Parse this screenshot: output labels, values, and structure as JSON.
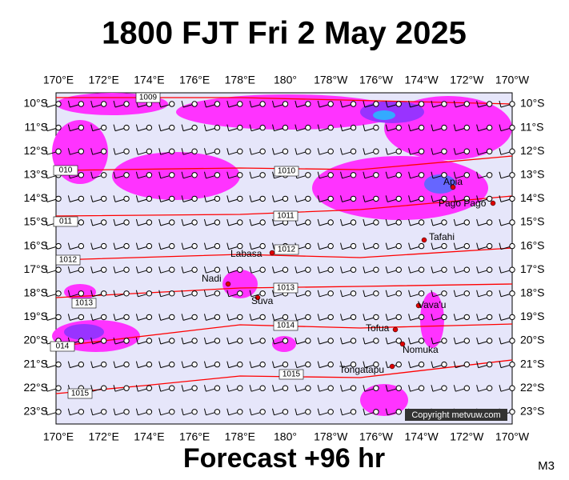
{
  "title": "1800 FJT Fri 2 May 2025",
  "lon_labels": [
    "170°E",
    "172°E",
    "174°E",
    "176°E",
    "178°E",
    "180°",
    "178°W",
    "176°W",
    "174°W",
    "172°W",
    "170°W"
  ],
  "lat_labels": [
    "10°S",
    "11°S",
    "12°S",
    "13°S",
    "14°S",
    "15°S",
    "16°S",
    "17°S",
    "18°S",
    "19°S",
    "20°S",
    "21°S",
    "22°S",
    "23°S"
  ],
  "isobar_labels": [
    "1009",
    "010",
    "1010",
    "1011",
    "011",
    "1012",
    "1012",
    "1013",
    "1013",
    "1014",
    "014",
    "1015",
    "1015"
  ],
  "places": [
    "Apia",
    "Pago Pago",
    "Tafahi",
    "Labasa",
    "Nadi",
    "Suva",
    "Vava'u",
    "Tofua",
    "Nomuka",
    "Tongatapu"
  ],
  "copyright": "Copyright metvuw.com",
  "footer": "Forecast +96 hr",
  "model": "M3"
}
